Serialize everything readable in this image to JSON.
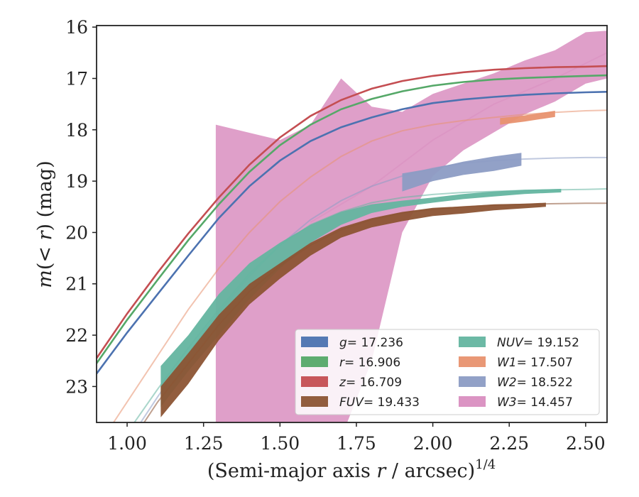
{
  "chart_data": {
    "type": "line",
    "xlabel_main": "(Semi-major axis ",
    "xlabel_var": "r",
    "xlabel_tail": " / arcsec)",
    "xlabel_sup": "1/4",
    "ylabel_main": "m",
    "ylabel_inner": "(< ",
    "ylabel_var": "r",
    "ylabel_tail": ") (mag)",
    "xlim": [
      0.9,
      2.57
    ],
    "ylim": [
      23.7,
      15.97
    ],
    "y_inverted": true,
    "xticks": [
      1.0,
      1.25,
      1.5,
      1.75,
      2.0,
      2.25,
      2.5
    ],
    "xtick_labels": [
      "1.00",
      "1.25",
      "1.50",
      "1.75",
      "2.00",
      "2.25",
      "2.50"
    ],
    "yticks": [
      16,
      17,
      18,
      19,
      20,
      21,
      22,
      23
    ],
    "ytick_labels": [
      "16",
      "17",
      "18",
      "19",
      "20",
      "21",
      "22",
      "23"
    ],
    "grid": false,
    "legend_position": "lower-right",
    "series": [
      {
        "name": "g",
        "label_value": "= 17.236",
        "color": "#4c72b0",
        "kind": "line",
        "x": [
          0.9,
          1.0,
          1.1,
          1.2,
          1.3,
          1.4,
          1.5,
          1.6,
          1.7,
          1.8,
          1.9,
          2.0,
          2.1,
          2.2,
          2.3,
          2.4,
          2.5,
          2.57
        ],
        "y": [
          22.75,
          21.95,
          21.2,
          20.45,
          19.72,
          19.1,
          18.6,
          18.22,
          17.95,
          17.76,
          17.6,
          17.48,
          17.41,
          17.36,
          17.32,
          17.29,
          17.27,
          17.26
        ]
      },
      {
        "name": "r",
        "label_value": "= 16.906",
        "color": "#55a868",
        "kind": "line",
        "x": [
          0.9,
          1.0,
          1.1,
          1.2,
          1.3,
          1.4,
          1.5,
          1.6,
          1.7,
          1.8,
          1.9,
          2.0,
          2.1,
          2.2,
          2.3,
          2.4,
          2.5,
          2.57
        ],
        "y": [
          22.55,
          21.7,
          20.92,
          20.15,
          19.45,
          18.82,
          18.3,
          17.9,
          17.6,
          17.4,
          17.25,
          17.14,
          17.07,
          17.02,
          16.99,
          16.97,
          16.95,
          16.94
        ]
      },
      {
        "name": "z",
        "label_value": "= 16.709",
        "color": "#c44e52",
        "kind": "line",
        "x": [
          0.9,
          1.0,
          1.1,
          1.2,
          1.3,
          1.4,
          1.5,
          1.6,
          1.7,
          1.8,
          1.9,
          2.0,
          2.1,
          2.2,
          2.3,
          2.4,
          2.5,
          2.57
        ],
        "y": [
          22.45,
          21.58,
          20.78,
          20.02,
          19.32,
          18.68,
          18.15,
          17.73,
          17.42,
          17.2,
          17.05,
          16.95,
          16.88,
          16.83,
          16.8,
          16.78,
          16.77,
          16.76
        ]
      },
      {
        "name": "FUV",
        "label_value": "= 19.433",
        "color": "#8c5434",
        "kind": "band",
        "x": [
          1.11,
          1.2,
          1.3,
          1.4,
          1.5,
          1.6,
          1.7,
          1.8,
          1.9,
          2.0,
          2.1,
          2.2,
          2.3,
          2.37
        ],
        "y_lo": [
          23.0,
          22.35,
          21.6,
          21.0,
          20.6,
          20.2,
          19.9,
          19.72,
          19.6,
          19.52,
          19.49,
          19.45,
          19.44,
          19.42
        ],
        "y_hi": [
          23.6,
          22.95,
          22.1,
          21.4,
          20.9,
          20.45,
          20.1,
          19.9,
          19.78,
          19.68,
          19.63,
          19.57,
          19.53,
          19.5
        ],
        "x_line": [
          0.9,
          1.0,
          1.1,
          1.2,
          1.3,
          1.4,
          1.5,
          1.6,
          1.7,
          1.8,
          1.9,
          2.0,
          2.1,
          2.2,
          2.3,
          2.4,
          2.5,
          2.57
        ],
        "y_line": [
          25.0,
          24.2,
          23.3,
          22.55,
          21.8,
          21.15,
          20.65,
          20.25,
          19.95,
          19.75,
          19.62,
          19.55,
          19.5,
          19.47,
          19.45,
          19.44,
          19.43,
          19.43
        ]
      },
      {
        "name": "NUV",
        "label_value": "= 19.152",
        "color": "#64b5a0",
        "kind": "band",
        "x": [
          1.11,
          1.2,
          1.3,
          1.4,
          1.5,
          1.6,
          1.7,
          1.8,
          1.9,
          2.0,
          2.1,
          2.2,
          2.3,
          2.42
        ],
        "y_lo": [
          22.6,
          22.0,
          21.2,
          20.6,
          20.2,
          19.85,
          19.6,
          19.45,
          19.38,
          19.32,
          19.25,
          19.2,
          19.17,
          19.15
        ],
        "y_hi": [
          23.4,
          22.7,
          22.0,
          21.3,
          20.7,
          20.2,
          19.85,
          19.62,
          19.5,
          19.42,
          19.35,
          19.3,
          19.25,
          19.22
        ],
        "x_line": [
          0.9,
          1.0,
          1.1,
          1.2,
          1.3,
          1.4,
          1.5,
          1.6,
          1.7,
          1.8,
          1.9,
          2.0,
          2.1,
          2.2,
          2.3,
          2.4,
          2.5,
          2.57
        ],
        "y_line": [
          24.8,
          23.9,
          23.05,
          22.25,
          21.5,
          20.8,
          20.25,
          19.85,
          19.6,
          19.42,
          19.32,
          19.26,
          19.22,
          19.2,
          19.18,
          19.17,
          19.16,
          19.15
        ]
      },
      {
        "name": "W1",
        "label_value": "= 17.507",
        "color": "#e8926f",
        "kind": "band",
        "x": [
          2.22,
          2.3,
          2.4
        ],
        "y_lo": [
          17.77,
          17.72,
          17.63
        ],
        "y_hi": [
          17.9,
          17.84,
          17.75
        ],
        "x_line": [
          0.9,
          1.0,
          1.1,
          1.2,
          1.3,
          1.4,
          1.5,
          1.6,
          1.7,
          1.8,
          1.9,
          2.0,
          2.1,
          2.2,
          2.3,
          2.4,
          2.5,
          2.57
        ],
        "y_line": [
          24.2,
          23.3,
          22.4,
          21.5,
          20.7,
          20.0,
          19.4,
          18.92,
          18.52,
          18.22,
          18.02,
          17.9,
          17.82,
          17.76,
          17.7,
          17.66,
          17.63,
          17.62
        ]
      },
      {
        "name": "W2",
        "label_value": "= 18.522",
        "color": "#8c9cc4",
        "kind": "band",
        "x": [
          1.9,
          2.0,
          2.1,
          2.2,
          2.29
        ],
        "y_lo": [
          18.85,
          18.75,
          18.62,
          18.52,
          18.45
        ],
        "y_hi": [
          19.2,
          19.0,
          18.88,
          18.8,
          18.7
        ],
        "x_line": [
          0.9,
          1.0,
          1.1,
          1.2,
          1.3,
          1.4,
          1.5,
          1.6,
          1.7,
          1.8,
          1.9,
          2.0,
          2.1,
          2.2,
          2.3,
          2.4,
          2.5,
          2.57
        ],
        "y_line": [
          25.0,
          24.1,
          23.2,
          22.35,
          21.55,
          20.85,
          20.25,
          19.75,
          19.38,
          19.1,
          18.9,
          18.75,
          18.65,
          18.6,
          18.57,
          18.55,
          18.54,
          18.54
        ]
      },
      {
        "name": "W3",
        "label_value": "= 14.457",
        "color": "#d98ec0",
        "kind": "band",
        "x": [
          1.29,
          1.5,
          1.6,
          1.7,
          1.8,
          1.9,
          2.0,
          2.1,
          2.2,
          2.3,
          2.4,
          2.5,
          2.57
        ],
        "y_lo": [
          17.9,
          18.2,
          17.9,
          17.0,
          17.55,
          17.65,
          17.3,
          17.1,
          16.9,
          16.65,
          16.45,
          16.1,
          16.07
        ],
        "y_hi": [
          24.0,
          23.8,
          23.9,
          24.0,
          22.5,
          20.0,
          18.9,
          18.4,
          18.05,
          17.7,
          17.45,
          17.1,
          17.0
        ],
        "x_line": [
          1.6,
          1.8,
          2.0,
          2.2,
          2.4,
          2.57
        ],
        "y_line": [
          19.8,
          19.1,
          18.2,
          17.5,
          17.0,
          16.5
        ]
      }
    ]
  }
}
